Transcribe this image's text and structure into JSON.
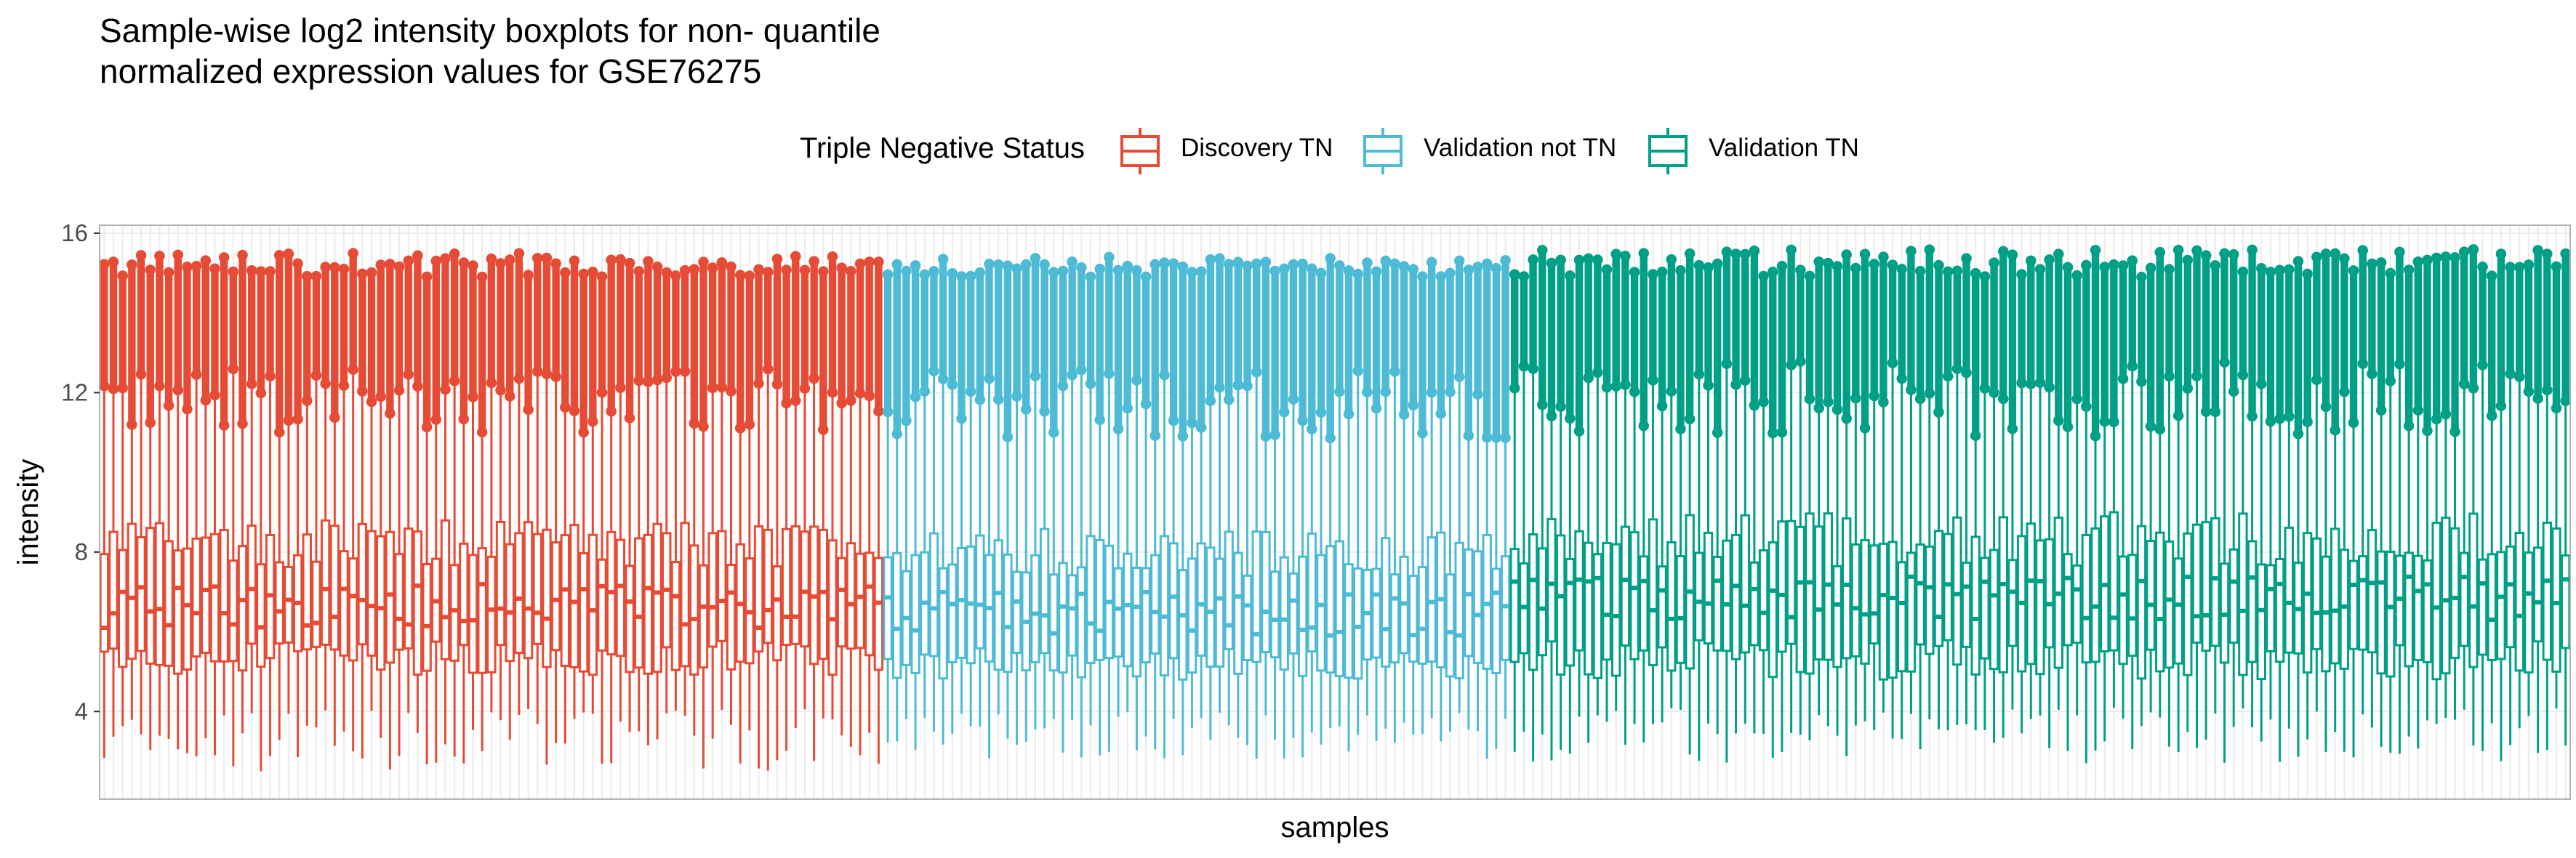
{
  "chart_data": {
    "type": "box",
    "title": [
      "Sample-wise log2 intensity boxplots for non- quantile",
      "normalized expression values for GSE76275"
    ],
    "xlabel": "samples",
    "ylabel": "intensity",
    "ylim": [
      1.8,
      16.2
    ],
    "yticks": [
      4,
      8,
      12,
      16
    ],
    "legend": {
      "title": "Triple Negative Status",
      "position": "top",
      "entries": [
        {
          "label": "Discovery TN",
          "color": "#E64B35"
        },
        {
          "label": "Validation not TN",
          "color": "#4DBBD5"
        },
        {
          "label": "Validation TN",
          "color": "#00A087"
        }
      ]
    },
    "groups": [
      {
        "name": "Discovery TN",
        "color": "#E64B35",
        "count": 85,
        "median_range": [
          6.1,
          7.2
        ],
        "q1_range": [
          4.9,
          5.8
        ],
        "q3_range": [
          7.6,
          8.8
        ],
        "whisker_low_range": [
          2.5,
          4.1
        ],
        "whisker_high_range": [
          11.0,
          12.6
        ],
        "max_range": [
          14.9,
          15.5
        ]
      },
      {
        "name": "Validation not TN",
        "color": "#4DBBD5",
        "count": 68,
        "median_range": [
          5.9,
          7.0
        ],
        "q1_range": [
          4.8,
          5.6
        ],
        "q3_range": [
          7.4,
          8.6
        ],
        "whisker_low_range": [
          2.8,
          4.0
        ],
        "whisker_high_range": [
          10.8,
          12.6
        ],
        "max_range": [
          14.9,
          15.4
        ]
      },
      {
        "name": "Validation TN",
        "color": "#00A087",
        "count": 115,
        "median_range": [
          6.3,
          7.4
        ],
        "q1_range": [
          4.8,
          5.8
        ],
        "q3_range": [
          7.6,
          9.0
        ],
        "whisker_low_range": [
          2.7,
          4.1
        ],
        "whisker_high_range": [
          10.9,
          12.8
        ],
        "max_range": [
          14.9,
          15.6
        ]
      }
    ]
  }
}
